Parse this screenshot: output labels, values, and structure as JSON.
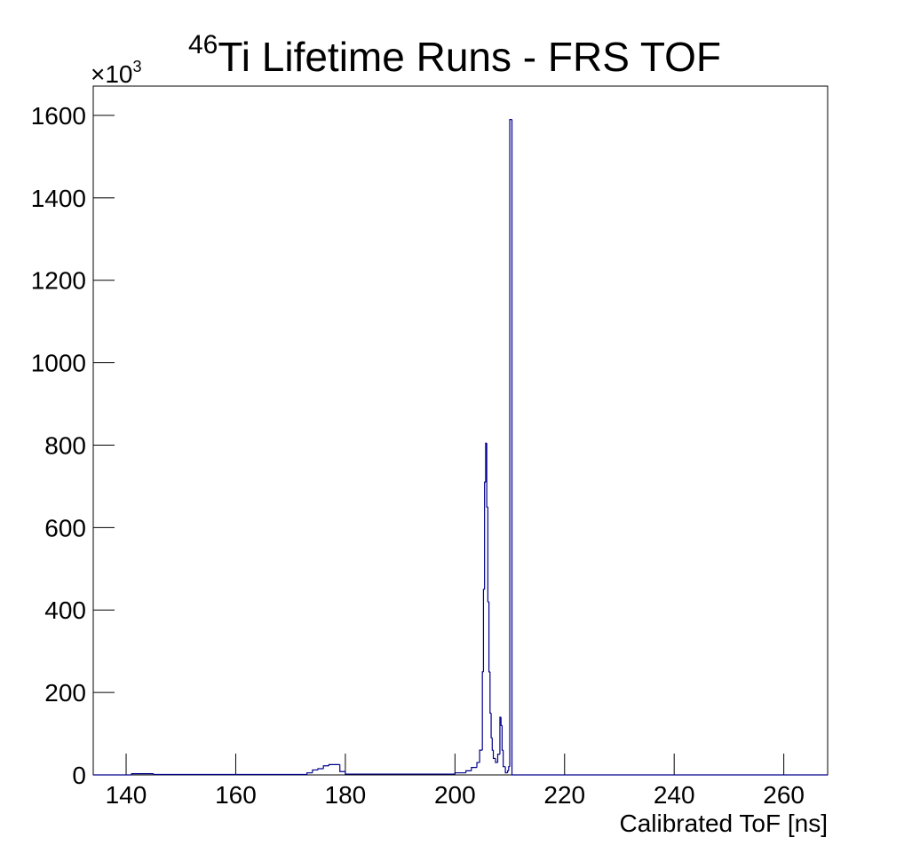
{
  "chart_data": {
    "type": "histogram",
    "title_superscript": "46",
    "title": "Ti Lifetime Runs - FRS TOF",
    "y_multiplier": {
      "base": "×10",
      "exponent": "3"
    },
    "xlabel": "Calibrated ToF [ns]",
    "bins": [
      134,
      141,
      145,
      173,
      174,
      175,
      176,
      177,
      179,
      180,
      200,
      202,
      203,
      204,
      204.5,
      205,
      205.2,
      205.4,
      205.6,
      205.8,
      206,
      206.2,
      206.4,
      206.6,
      206.8,
      207,
      207.4,
      207.8,
      208.2,
      208.4,
      208.6,
      208.8,
      209.2,
      209.6,
      209.8,
      210,
      210.4,
      211,
      268
    ],
    "counts": [
      0,
      3,
      1,
      5,
      12,
      15,
      22,
      25,
      8,
      2,
      5,
      10,
      18,
      30,
      60,
      250,
      450,
      710,
      805,
      650,
      420,
      250,
      150,
      90,
      60,
      40,
      30,
      50,
      140,
      120,
      60,
      20,
      5,
      10,
      20,
      1590,
      0,
      0
    ],
    "color": "#00008b",
    "xlim": [
      134,
      268
    ],
    "xticks": [
      140,
      160,
      180,
      200,
      220,
      240,
      260
    ],
    "ylim": [
      0,
      1671
    ],
    "yticks": [
      0,
      200,
      400,
      600,
      800,
      1000,
      1200,
      1400,
      1600
    ]
  }
}
